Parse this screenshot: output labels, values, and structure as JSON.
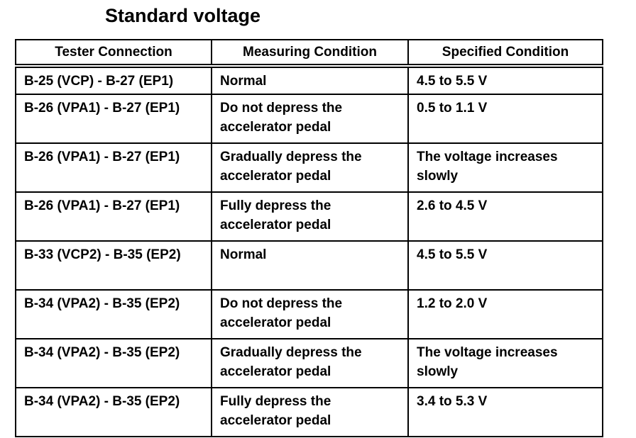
{
  "title": "Standard voltage",
  "table": {
    "header": [
      "Tester Connection",
      "Measuring Condition",
      "Specified Condition"
    ],
    "rows": [
      [
        "B-25 (VCP) - B-27 (EP1)",
        "Normal",
        "4.5 to 5.5 V"
      ],
      [
        "B-26 (VPA1) - B-27 (EP1)",
        "Do not depress the accelerator pedal",
        "0.5 to 1.1 V"
      ],
      [
        "B-26 (VPA1) - B-27 (EP1)",
        "Gradually depress the accelerator pedal",
        "The voltage increases slowly"
      ],
      [
        "B-26 (VPA1) - B-27 (EP1)",
        "Fully depress the accelerator pedal",
        "2.6 to 4.5 V"
      ],
      [
        "B-33 (VCP2) - B-35 (EP2)",
        "Normal",
        "4.5 to 5.5 V"
      ],
      [
        "B-34 (VPA2) - B-35 (EP2)",
        "Do not depress the accelerator pedal",
        "1.2 to 2.0 V"
      ],
      [
        "B-34 (VPA2) - B-35 (EP2)",
        "Gradually depress the accelerator pedal",
        "The voltage increases slowly"
      ],
      [
        "B-34 (VPA2) - B-35 (EP2)",
        "Fully depress the accelerator pedal",
        "3.4 to 5.3 V"
      ]
    ]
  }
}
